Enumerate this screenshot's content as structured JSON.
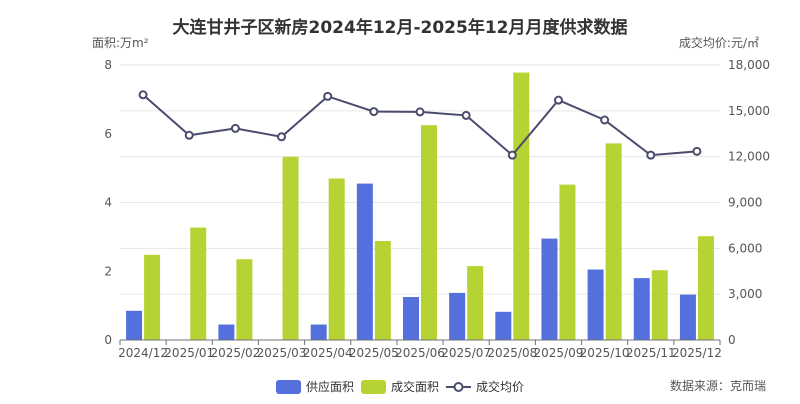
{
  "chart_data": {
    "type": "bar",
    "title": "大连甘井子区新房2024年12月-2025年12月月度供求数据",
    "left_axis_label": "面积:万m²",
    "right_axis_label": "成交均价:元/㎡",
    "categories": [
      "2024/12",
      "2025/01",
      "2025/02",
      "2025/03",
      "2025/04",
      "2025/05",
      "2025/06",
      "2025/07",
      "2025/08",
      "2025/09",
      "2025/10",
      "2025/11",
      "2025/12"
    ],
    "left_axis": {
      "min": 0,
      "max": 8,
      "ticks": [
        "0",
        "2",
        "4",
        "6",
        "8"
      ]
    },
    "right_axis": {
      "min": 0,
      "max": 18000,
      "ticks": [
        "0",
        "3,000",
        "6,000",
        "9,000",
        "12,000",
        "15,000",
        "18,000"
      ]
    },
    "series": [
      {
        "name": "供应面积",
        "kind": "bar",
        "axis": "left",
        "color": "#5470dc",
        "values": [
          0.85,
          0,
          0.45,
          0,
          0.45,
          4.55,
          1.25,
          1.37,
          0.82,
          2.95,
          2.05,
          1.8,
          1.32
        ]
      },
      {
        "name": "成交面积",
        "kind": "bar",
        "axis": "left",
        "color": "#b5d433",
        "values": [
          2.48,
          3.27,
          2.35,
          5.33,
          4.7,
          2.88,
          6.25,
          2.15,
          7.78,
          4.52,
          5.72,
          2.03,
          3.02
        ]
      },
      {
        "name": "成交均价",
        "kind": "line",
        "axis": "right",
        "color": "#4a4c6e",
        "values": [
          16050,
          13400,
          13850,
          13300,
          15950,
          14950,
          14930,
          14700,
          12100,
          15700,
          14400,
          12100,
          12350
        ]
      }
    ],
    "legend_position": "bottom",
    "grid": true,
    "source": "数据来源：克而瑞"
  }
}
